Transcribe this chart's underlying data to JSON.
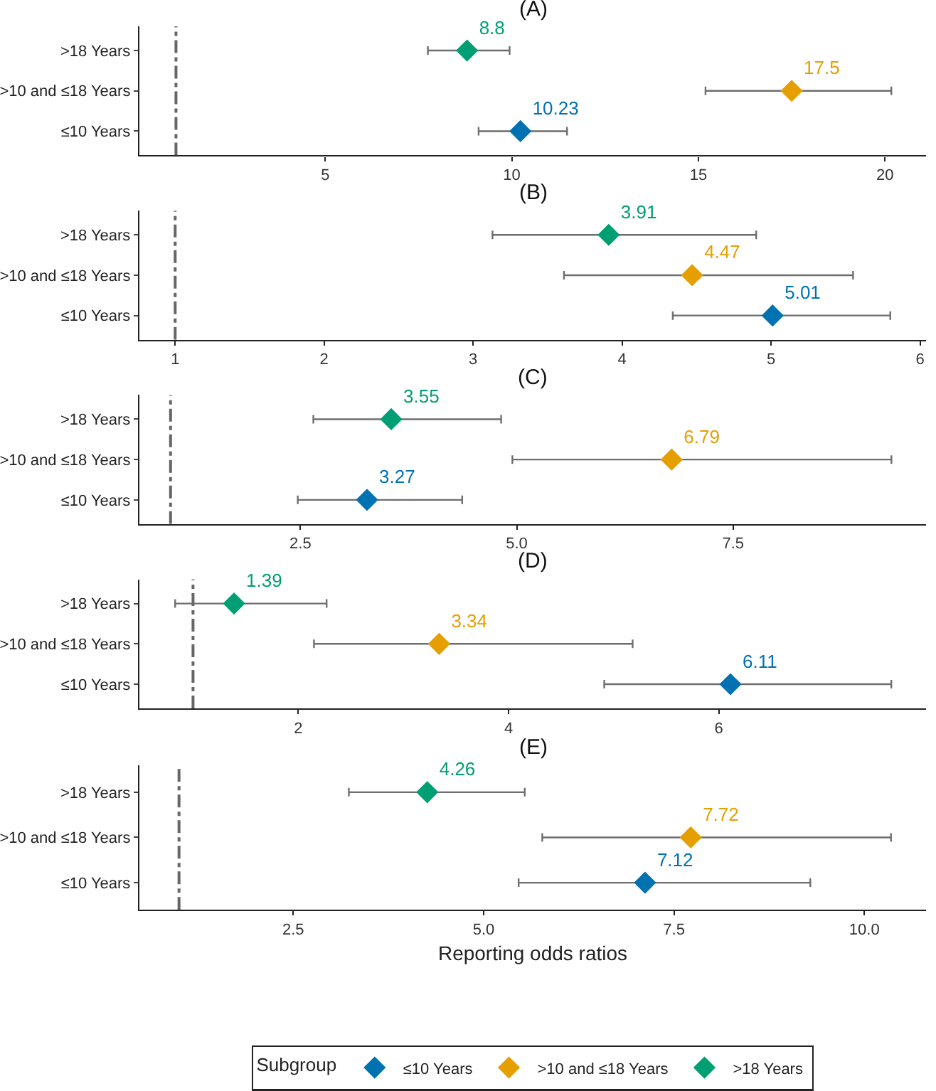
{
  "chart_data": [
    {
      "type": "scatter",
      "title": "(A)",
      "orientation": "horizontal",
      "categories": [
        ">18 Years",
        ">10 and ≤18 Years",
        "≤10 Years"
      ],
      "marker": "diamond",
      "data_labels": true,
      "grid": false,
      "xlim": [
        0.02,
        21.1
      ],
      "xticks": [
        5,
        10,
        15,
        20
      ],
      "ref_lines": [
        {
          "axis": "x",
          "value": 1,
          "color": "#666666"
        }
      ],
      "series": [
        {
          "color": "#0072b2",
          "values": [
            null,
            null,
            10.23
          ],
          "errors": [
            null,
            null,
            [
              9.11,
              11.48
            ]
          ]
        },
        {
          "color": "#e69f00",
          "values": [
            null,
            17.5,
            null
          ],
          "errors": [
            null,
            [
              15.19,
              20.17
            ],
            null
          ]
        },
        {
          "color": "#009e73",
          "values": [
            8.8,
            null,
            null
          ],
          "errors": [
            [
              7.75,
              9.94
            ],
            null,
            null
          ]
        }
      ]
    },
    {
      "type": "scatter",
      "title": "(B)",
      "orientation": "horizontal",
      "categories": [
        ">18 Years",
        ">10 and ≤18 Years",
        "≤10 Years"
      ],
      "marker": "diamond",
      "data_labels": true,
      "grid": false,
      "xlim": [
        0.76,
        6.04
      ],
      "xticks": [
        1,
        2,
        3,
        4,
        5,
        6
      ],
      "ref_lines": [
        {
          "axis": "x",
          "value": 1,
          "color": "#666666"
        }
      ],
      "series": [
        {
          "color": "#0072b2",
          "values": [
            null,
            null,
            5.01
          ],
          "errors": [
            null,
            null,
            [
              4.34,
              5.8
            ]
          ]
        },
        {
          "color": "#e69f00",
          "values": [
            null,
            4.47,
            null
          ],
          "errors": [
            null,
            [
              3.61,
              5.55
            ],
            null
          ]
        },
        {
          "color": "#009e73",
          "values": [
            3.91,
            null,
            null
          ],
          "errors": [
            [
              3.13,
              4.9
            ],
            null,
            null
          ]
        }
      ]
    },
    {
      "type": "scatter",
      "title": "(C)",
      "orientation": "horizontal",
      "categories": [
        ">18 Years",
        ">10 and ≤18 Years",
        "≤10 Years"
      ],
      "marker": "diamond",
      "data_labels": true,
      "grid": false,
      "xlim": [
        0.64,
        9.73
      ],
      "xticks": [
        {
          "value": 2.5,
          "label": "2.5"
        },
        {
          "value": 5,
          "label": "5.0"
        },
        {
          "value": 7.5,
          "label": "7.5"
        }
      ],
      "ref_lines": [
        {
          "axis": "x",
          "value": 1,
          "color": "#666666"
        }
      ],
      "series": [
        {
          "color": "#0072b2",
          "values": [
            null,
            null,
            3.27
          ],
          "errors": [
            null,
            null,
            [
              2.47,
              4.37
            ]
          ]
        },
        {
          "color": "#e69f00",
          "values": [
            null,
            6.79,
            null
          ],
          "errors": [
            null,
            [
              4.95,
              9.33
            ],
            null
          ]
        },
        {
          "color": "#009e73",
          "values": [
            3.55,
            null,
            null
          ],
          "errors": [
            [
              2.65,
              4.82
            ],
            null,
            null
          ]
        }
      ]
    },
    {
      "type": "scatter",
      "title": "(D)",
      "orientation": "horizontal",
      "categories": [
        ">18 Years",
        ">10 and ≤18 Years",
        "≤10 Years"
      ],
      "marker": "diamond",
      "data_labels": true,
      "grid": false,
      "xlim": [
        0.49,
        7.97
      ],
      "xticks": [
        2,
        4,
        6
      ],
      "ref_lines": [
        {
          "axis": "x",
          "value": 1,
          "color": "#666666"
        }
      ],
      "series": [
        {
          "color": "#0072b2",
          "values": [
            null,
            null,
            6.11
          ],
          "errors": [
            null,
            null,
            [
              4.91,
              7.64
            ]
          ]
        },
        {
          "color": "#e69f00",
          "values": [
            null,
            3.34,
            null
          ],
          "errors": [
            null,
            [
              2.15,
              5.18
            ],
            null
          ]
        },
        {
          "color": "#009e73",
          "values": [
            1.39,
            null,
            null
          ],
          "errors": [
            [
              0.83,
              2.27
            ],
            null,
            null
          ]
        }
      ]
    },
    {
      "type": "scatter",
      "title": "(E)",
      "xlabel": "Reporting odds ratios",
      "legend": "bottom",
      "legend_title": "Subgroup",
      "orientation": "horizontal",
      "categories": [
        ">18 Years",
        ">10 and ≤18 Years",
        "≤10 Years"
      ],
      "marker": "diamond",
      "data_labels": true,
      "grid": false,
      "xlim": [
        0.48,
        10.81
      ],
      "xticks": [
        {
          "value": 2.5,
          "label": "2.5"
        },
        {
          "value": 5,
          "label": "5.0"
        },
        {
          "value": 7.5,
          "label": "7.5"
        },
        {
          "value": 10,
          "label": "10.0"
        }
      ],
      "ref_lines": [
        {
          "axis": "x",
          "value": 1,
          "color": "#666666"
        }
      ],
      "series": [
        {
          "name": "≤10 Years",
          "color": "#0072b2",
          "values": [
            null,
            null,
            7.12
          ],
          "errors": [
            null,
            null,
            [
              5.46,
              9.29
            ]
          ]
        },
        {
          "name": ">10 and ≤18 Years",
          "color": "#e69f00",
          "values": [
            null,
            7.72,
            null
          ],
          "errors": [
            null,
            [
              5.77,
              10.35
            ],
            null
          ]
        },
        {
          "name": ">18 Years",
          "color": "#009e73",
          "values": [
            4.26,
            null,
            null
          ],
          "errors": [
            [
              3.23,
              5.54
            ],
            null,
            null
          ]
        }
      ]
    }
  ]
}
